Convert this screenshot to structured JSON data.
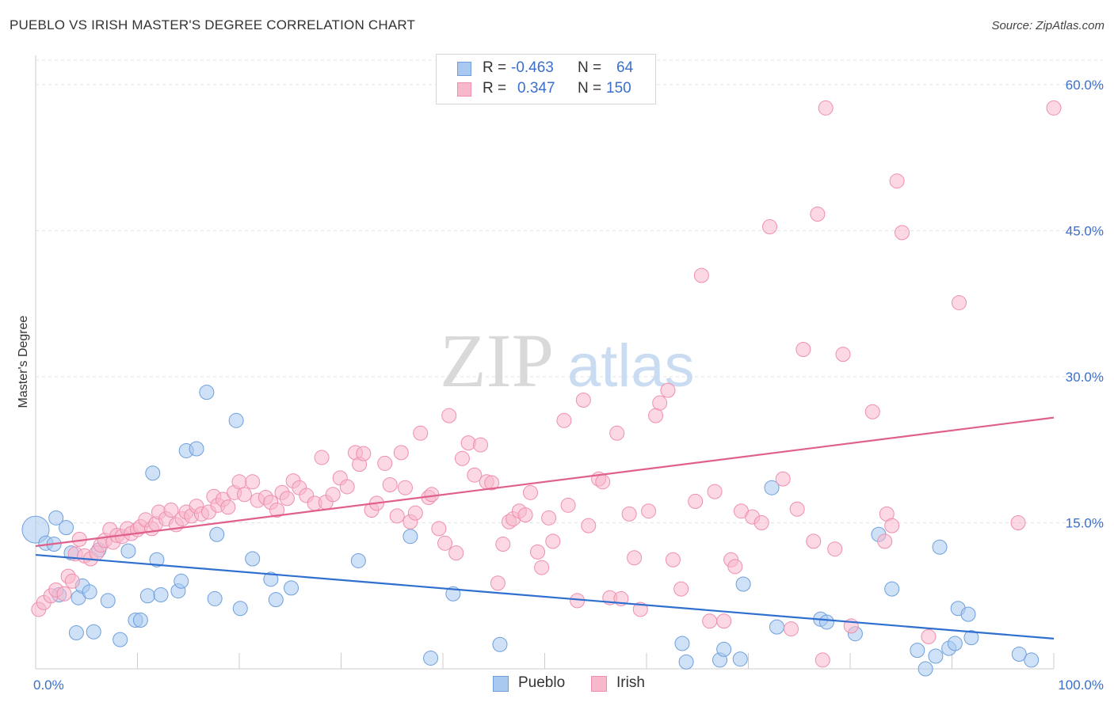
{
  "header": {
    "title": "PUEBLO VS IRISH MASTER'S DEGREE CORRELATION CHART",
    "source": "Source: ZipAtlas.com"
  },
  "watermark": {
    "zip": "ZIP",
    "atlas": "atlas"
  },
  "stats": {
    "rows": [
      {
        "r_label": "R = ",
        "r_value": "-0.463",
        "n_label": "N = ",
        "n_value": "64",
        "color": "#a8c8f0"
      },
      {
        "r_label": "R = ",
        "r_value": "0.347",
        "n_label": "N = ",
        "n_value": "150",
        "color": "#f8b8cc"
      }
    ]
  },
  "legend": {
    "items": [
      {
        "label": "Pueblo",
        "color": "#a8c8f0"
      },
      {
        "label": "Irish",
        "color": "#f8b8cc"
      }
    ]
  },
  "chart_data": {
    "type": "scatter",
    "ylabel": "Master's Degree",
    "xlim": [
      0,
      100
    ],
    "ylim": [
      0,
      63
    ],
    "x_tick_labels": [
      {
        "value": 0,
        "label": "0.0%"
      },
      {
        "value": 100,
        "label": "100.0%"
      }
    ],
    "y_tick_labels": [
      {
        "value": 15,
        "label": "15.0%"
      },
      {
        "value": 30,
        "label": "30.0%"
      },
      {
        "value": 45,
        "label": "45.0%"
      },
      {
        "value": 60,
        "label": "60.0%"
      }
    ],
    "grid": "horizontal dashed",
    "colors": {
      "pueblo_fill": "#a8c8f0",
      "pueblo_edge": "#6f9fdc",
      "pueblo_line": "#2f6fcf",
      "irish_fill": "#f8b8cc",
      "irish_edge": "#ee8fae",
      "irish_line": "#e0608c",
      "tick_label": "#3a6fcc"
    },
    "series": [
      {
        "name": "Pueblo",
        "trend": {
          "x": [
            0,
            100
          ],
          "y": [
            11.7,
            3.1
          ]
        },
        "points": [
          [
            0,
            14.3
          ],
          [
            1,
            12.9
          ],
          [
            1.8,
            12.8
          ],
          [
            2,
            15.5
          ],
          [
            2.3,
            7.6
          ],
          [
            3,
            14.5
          ],
          [
            3.5,
            11.9
          ],
          [
            4,
            3.7
          ],
          [
            4.2,
            7.3
          ],
          [
            4.6,
            8.5
          ],
          [
            5.3,
            7.9
          ],
          [
            5.7,
            3.8
          ],
          [
            6.2,
            12.2
          ],
          [
            7.1,
            7.0
          ],
          [
            8.3,
            3.0
          ],
          [
            9.1,
            12.1
          ],
          [
            9.8,
            5.0
          ],
          [
            10.3,
            5.0
          ],
          [
            11,
            7.5
          ],
          [
            11.5,
            20.1
          ],
          [
            11.9,
            11.2
          ],
          [
            12.3,
            7.6
          ],
          [
            14,
            8.0
          ],
          [
            14.3,
            9.0
          ],
          [
            14.8,
            22.4
          ],
          [
            15.8,
            22.6
          ],
          [
            16.8,
            28.4
          ],
          [
            17.6,
            7.2
          ],
          [
            17.8,
            13.8
          ],
          [
            19.7,
            25.5
          ],
          [
            20.1,
            6.2
          ],
          [
            21.3,
            11.3
          ],
          [
            23.1,
            9.2
          ],
          [
            23.6,
            7.1
          ],
          [
            25.1,
            8.3
          ],
          [
            31.7,
            11.1
          ],
          [
            36.8,
            13.6
          ],
          [
            38.8,
            1.1
          ],
          [
            41,
            7.7
          ],
          [
            45.6,
            2.5
          ],
          [
            63.5,
            2.6
          ],
          [
            63.9,
            0.7
          ],
          [
            67.2,
            0.9
          ],
          [
            67.6,
            2.0
          ],
          [
            69.2,
            1.0
          ],
          [
            69.5,
            8.7
          ],
          [
            72.3,
            18.6
          ],
          [
            72.8,
            4.3
          ],
          [
            77.1,
            5.1
          ],
          [
            77.7,
            4.8
          ],
          [
            80.5,
            3.6
          ],
          [
            82.8,
            13.8
          ],
          [
            84.1,
            8.2
          ],
          [
            86.6,
            1.9
          ],
          [
            88.4,
            1.3
          ],
          [
            87.4,
            0.0
          ],
          [
            88.8,
            12.5
          ],
          [
            89.7,
            2.1
          ],
          [
            90.3,
            2.6
          ],
          [
            90.6,
            6.2
          ],
          [
            91.6,
            5.6
          ],
          [
            91.9,
            3.2
          ],
          [
            96.6,
            1.5
          ],
          [
            97.8,
            0.9
          ]
        ]
      },
      {
        "name": "Irish",
        "trend": {
          "x": [
            0,
            100
          ],
          "y": [
            12.6,
            25.8
          ]
        },
        "points": [
          [
            0.3,
            6.1
          ],
          [
            0.8,
            6.8
          ],
          [
            1.5,
            7.5
          ],
          [
            2,
            8.1
          ],
          [
            2.8,
            7.7
          ],
          [
            3.2,
            9.5
          ],
          [
            3.6,
            9.0
          ],
          [
            3.9,
            11.8
          ],
          [
            4.3,
            13.3
          ],
          [
            4.8,
            11.6
          ],
          [
            5.4,
            11.3
          ],
          [
            6,
            11.9
          ],
          [
            6.4,
            12.7
          ],
          [
            6.8,
            13.2
          ],
          [
            7.3,
            14.3
          ],
          [
            7.6,
            13.0
          ],
          [
            8,
            13.7
          ],
          [
            8.5,
            13.6
          ],
          [
            9,
            14.4
          ],
          [
            9.4,
            13.9
          ],
          [
            10,
            14.3
          ],
          [
            10.3,
            14.6
          ],
          [
            10.8,
            15.3
          ],
          [
            11.4,
            14.4
          ],
          [
            11.8,
            14.9
          ],
          [
            12.1,
            16.1
          ],
          [
            12.8,
            15.4
          ],
          [
            13.3,
            16.3
          ],
          [
            13.8,
            14.8
          ],
          [
            14.4,
            15.4
          ],
          [
            14.8,
            16.1
          ],
          [
            15.3,
            15.7
          ],
          [
            15.8,
            16.7
          ],
          [
            16.3,
            15.9
          ],
          [
            17,
            16.1
          ],
          [
            17.5,
            17.7
          ],
          [
            17.9,
            16.8
          ],
          [
            18.4,
            17.4
          ],
          [
            18.9,
            16.6
          ],
          [
            19.5,
            18.1
          ],
          [
            20,
            19.2
          ],
          [
            20.5,
            17.9
          ],
          [
            21.3,
            19.2
          ],
          [
            21.8,
            17.3
          ],
          [
            22.6,
            17.6
          ],
          [
            23.1,
            17.1
          ],
          [
            23.7,
            16.3
          ],
          [
            24.2,
            18.1
          ],
          [
            24.7,
            17.5
          ],
          [
            25.3,
            19.3
          ],
          [
            25.9,
            18.6
          ],
          [
            26.6,
            17.8
          ],
          [
            27.4,
            17.0
          ],
          [
            28.1,
            21.7
          ],
          [
            28.5,
            17.1
          ],
          [
            29.2,
            17.9
          ],
          [
            29.9,
            19.6
          ],
          [
            30.6,
            18.7
          ],
          [
            31.4,
            22.2
          ],
          [
            31.8,
            21.0
          ],
          [
            32.2,
            22.1
          ],
          [
            33,
            16.3
          ],
          [
            33.5,
            17.0
          ],
          [
            34.3,
            21.1
          ],
          [
            34.8,
            18.9
          ],
          [
            35.5,
            15.7
          ],
          [
            35.9,
            22.2
          ],
          [
            36.3,
            18.6
          ],
          [
            36.8,
            15.1
          ],
          [
            37.3,
            16.0
          ],
          [
            37.8,
            24.2
          ],
          [
            38.6,
            17.6
          ],
          [
            38.9,
            17.9
          ],
          [
            39.6,
            14.4
          ],
          [
            40.2,
            12.9
          ],
          [
            40.6,
            26.0
          ],
          [
            41.3,
            11.9
          ],
          [
            41.9,
            21.6
          ],
          [
            42.5,
            23.2
          ],
          [
            43.1,
            19.9
          ],
          [
            43.7,
            23.0
          ],
          [
            44.3,
            19.2
          ],
          [
            44.8,
            19.1
          ],
          [
            45.4,
            8.8
          ],
          [
            45.9,
            12.8
          ],
          [
            46.5,
            15.1
          ],
          [
            46.9,
            15.4
          ],
          [
            47.5,
            16.2
          ],
          [
            48.1,
            15.8
          ],
          [
            48.6,
            18.1
          ],
          [
            49.3,
            12.0
          ],
          [
            49.7,
            10.4
          ],
          [
            50.4,
            15.5
          ],
          [
            50.8,
            13.1
          ],
          [
            51.9,
            25.5
          ],
          [
            52.3,
            16.8
          ],
          [
            53.2,
            7.0
          ],
          [
            53.8,
            27.6
          ],
          [
            54.3,
            14.7
          ],
          [
            55.3,
            19.5
          ],
          [
            55.7,
            19.2
          ],
          [
            56.4,
            7.3
          ],
          [
            57.1,
            24.2
          ],
          [
            57.5,
            7.2
          ],
          [
            58.3,
            15.9
          ],
          [
            58.8,
            11.4
          ],
          [
            59.4,
            6.1
          ],
          [
            60.2,
            16.2
          ],
          [
            60.9,
            26.0
          ],
          [
            61.3,
            27.3
          ],
          [
            62.1,
            28.6
          ],
          [
            62.6,
            11.2
          ],
          [
            63.4,
            8.2
          ],
          [
            64.8,
            17.2
          ],
          [
            65.4,
            40.4
          ],
          [
            66.2,
            4.9
          ],
          [
            66.7,
            18.2
          ],
          [
            67.6,
            4.9
          ],
          [
            68.3,
            11.2
          ],
          [
            68.7,
            10.5
          ],
          [
            69.3,
            16.2
          ],
          [
            70.4,
            15.6
          ],
          [
            71.3,
            15.0
          ],
          [
            72.1,
            45.4
          ],
          [
            73.4,
            19.5
          ],
          [
            74.2,
            4.1
          ],
          [
            74.8,
            16.4
          ],
          [
            75.4,
            32.8
          ],
          [
            76.4,
            13.1
          ],
          [
            76.8,
            46.7
          ],
          [
            77.3,
            0.9
          ],
          [
            77.6,
            57.6
          ],
          [
            78.5,
            12.3
          ],
          [
            79.3,
            32.3
          ],
          [
            80.1,
            4.4
          ],
          [
            82.2,
            26.4
          ],
          [
            83.4,
            13.1
          ],
          [
            83.6,
            15.9
          ],
          [
            84.1,
            14.7
          ],
          [
            84.6,
            50.1
          ],
          [
            85.1,
            44.8
          ],
          [
            87.7,
            3.3
          ],
          [
            90.7,
            37.6
          ],
          [
            96.5,
            15.0
          ],
          [
            100,
            57.6
          ]
        ]
      }
    ]
  }
}
